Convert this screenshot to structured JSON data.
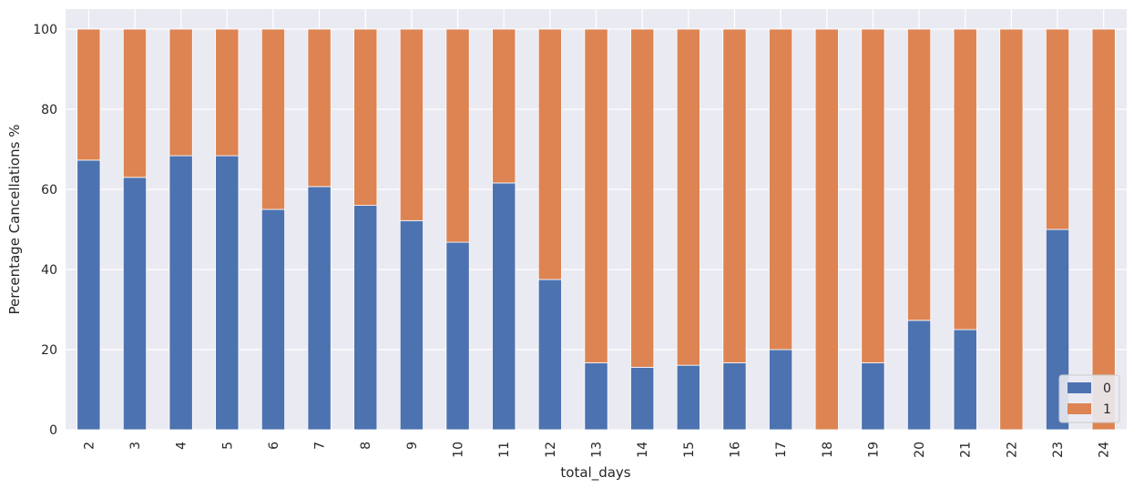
{
  "chart_data": {
    "type": "bar",
    "stacked": true,
    "percent": true,
    "xlabel": "total_days",
    "ylabel": "Percentage Cancellations %",
    "ylim": [
      0,
      105
    ],
    "yticks": [
      0,
      20,
      40,
      60,
      80,
      100
    ],
    "grid": true,
    "legend_position": "bottom-right",
    "categories": [
      "2",
      "3",
      "4",
      "5",
      "6",
      "7",
      "8",
      "9",
      "10",
      "11",
      "12",
      "13",
      "14",
      "15",
      "16",
      "17",
      "18",
      "19",
      "20",
      "21",
      "22",
      "23",
      "24"
    ],
    "series": [
      {
        "name": "0",
        "color": "#4C72B0",
        "values": [
          67.3,
          63.0,
          68.4,
          68.4,
          55.0,
          60.7,
          56.0,
          52.2,
          46.8,
          61.6,
          37.5,
          16.7,
          15.6,
          16.1,
          16.7,
          20.0,
          0,
          16.7,
          27.3,
          25.0,
          0,
          50.0,
          0
        ]
      },
      {
        "name": "1",
        "color": "#DD8452",
        "values": [
          32.7,
          37.0,
          31.6,
          31.6,
          45.0,
          39.3,
          44.0,
          47.8,
          53.2,
          38.4,
          62.5,
          83.3,
          84.4,
          83.9,
          83.3,
          80.0,
          100,
          83.3,
          72.7,
          75.0,
          100,
          50.0,
          100
        ]
      }
    ]
  }
}
